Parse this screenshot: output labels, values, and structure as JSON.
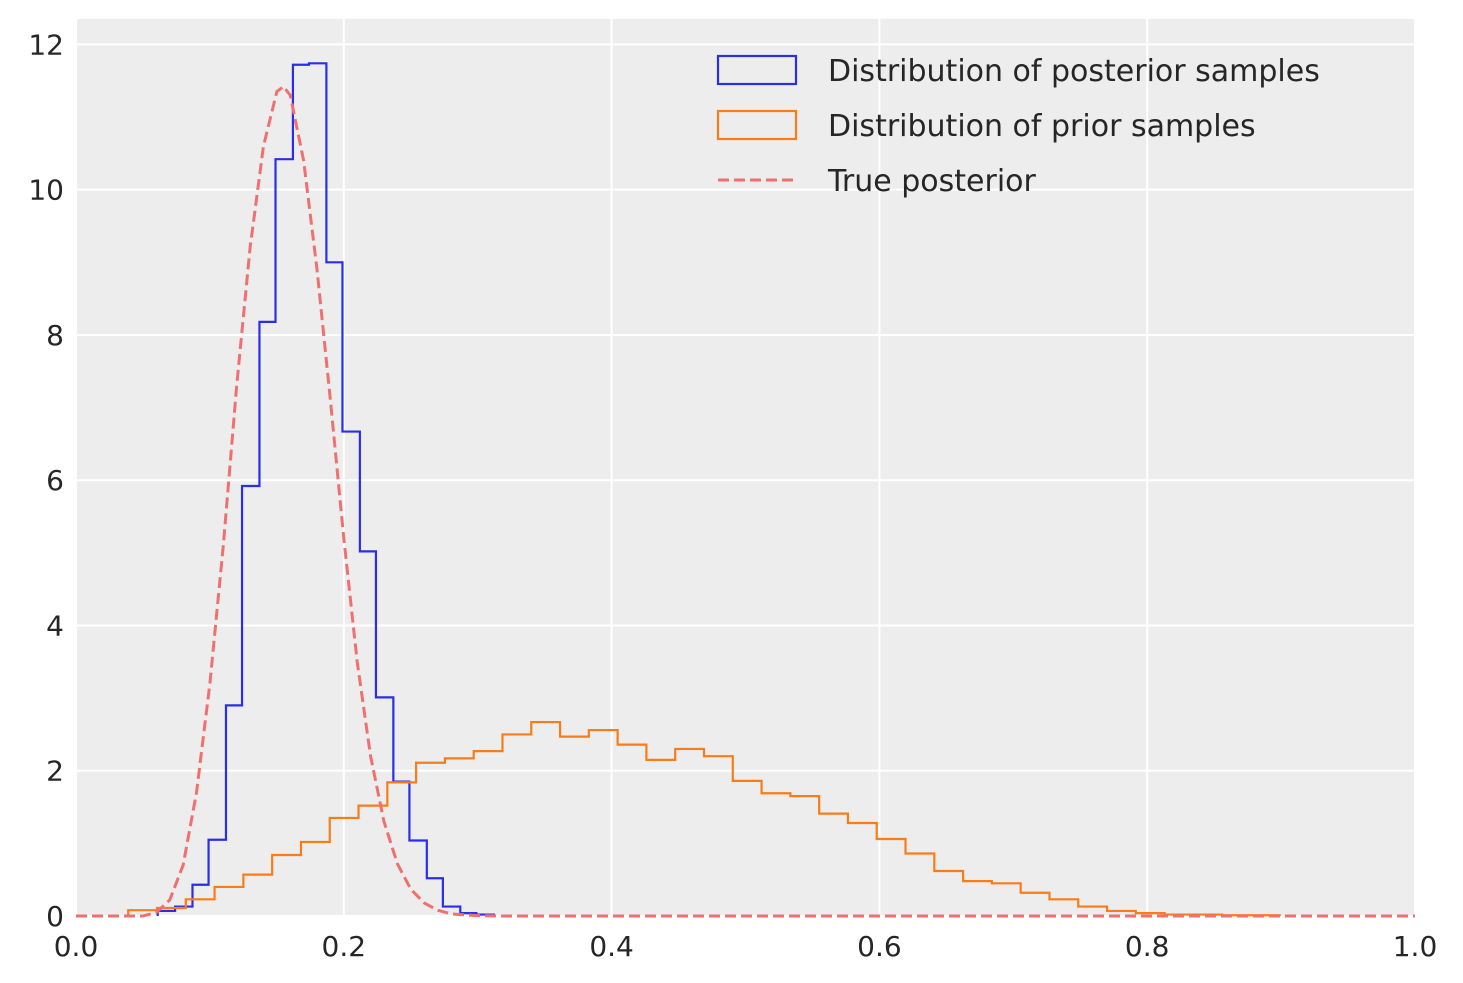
{
  "chart_data": {
    "type": "histogram",
    "title": "",
    "xlabel": "",
    "ylabel": "",
    "xlim": [
      0.0,
      1.0
    ],
    "ylim": [
      0,
      12.35
    ],
    "xticks": [
      "0.0",
      "0.2",
      "0.4",
      "0.6",
      "0.8",
      "1.0"
    ],
    "yticks": [
      "0",
      "2",
      "4",
      "6",
      "8",
      "10",
      "12"
    ],
    "xtick_values": [
      0.0,
      0.2,
      0.4,
      0.6,
      0.8,
      1.0
    ],
    "ytick_values": [
      0,
      2,
      4,
      6,
      8,
      10,
      12
    ],
    "grid": true,
    "background": "#ededed",
    "legend_position": "top-right",
    "series": [
      {
        "name": "Distribution of posterior samples",
        "kind": "step",
        "color": "#2a2eec",
        "edges": [
          0.061,
          0.074,
          0.087,
          0.099,
          0.112,
          0.124,
          0.137,
          0.149,
          0.162,
          0.174,
          0.187,
          0.199,
          0.212,
          0.224,
          0.237,
          0.249,
          0.262,
          0.274,
          0.287,
          0.299,
          0.312
        ],
        "values": [
          0.07,
          0.13,
          0.43,
          1.05,
          2.9,
          5.92,
          8.18,
          10.42,
          11.72,
          11.74,
          9.0,
          6.67,
          5.02,
          3.01,
          1.85,
          1.04,
          0.52,
          0.13,
          0.04,
          0.02
        ]
      },
      {
        "name": "Distribution of prior samples",
        "kind": "step",
        "color": "#fa7c17",
        "edges": [
          0.039,
          0.0605,
          0.082,
          0.1035,
          0.125,
          0.1465,
          0.168,
          0.1895,
          0.211,
          0.2325,
          0.254,
          0.2755,
          0.297,
          0.3185,
          0.34,
          0.3615,
          0.383,
          0.4045,
          0.426,
          0.4475,
          0.469,
          0.4905,
          0.512,
          0.5335,
          0.555,
          0.5765,
          0.598,
          0.6195,
          0.641,
          0.6625,
          0.684,
          0.7055,
          0.727,
          0.7485,
          0.77,
          0.7915,
          0.813,
          0.8345,
          0.856,
          0.8775,
          0.899
        ],
        "values": [
          0.08,
          0.11,
          0.23,
          0.4,
          0.57,
          0.84,
          1.02,
          1.35,
          1.52,
          1.84,
          2.11,
          2.17,
          2.27,
          2.5,
          2.67,
          2.47,
          2.56,
          2.36,
          2.15,
          2.3,
          2.2,
          1.86,
          1.69,
          1.65,
          1.41,
          1.28,
          1.06,
          0.86,
          0.62,
          0.48,
          0.45,
          0.32,
          0.23,
          0.13,
          0.07,
          0.04,
          0.02,
          0.02,
          0.01,
          0.01
        ]
      },
      {
        "name": "True posterior",
        "kind": "line",
        "style": "dashed",
        "color": "#f07070",
        "x": [
          0.0,
          0.05,
          0.06,
          0.07,
          0.08,
          0.09,
          0.1,
          0.11,
          0.12,
          0.13,
          0.14,
          0.15,
          0.155,
          0.16,
          0.17,
          0.18,
          0.19,
          0.2,
          0.21,
          0.22,
          0.23,
          0.24,
          0.25,
          0.26,
          0.27,
          0.28,
          0.29,
          0.3,
          0.32,
          0.35,
          1.0
        ],
        "y": [
          0.0,
          0.0,
          0.05,
          0.22,
          0.7,
          1.7,
          3.2,
          5.1,
          7.3,
          9.2,
          10.6,
          11.35,
          11.42,
          11.3,
          10.4,
          8.9,
          7.1,
          5.2,
          3.5,
          2.2,
          1.3,
          0.72,
          0.37,
          0.18,
          0.08,
          0.03,
          0.015,
          0.005,
          0.0,
          0.0,
          0.0
        ]
      }
    ]
  }
}
